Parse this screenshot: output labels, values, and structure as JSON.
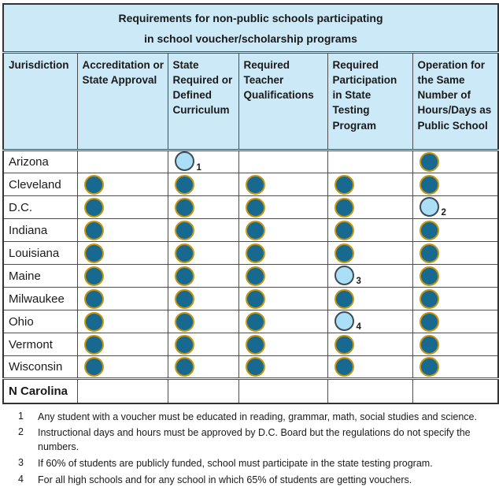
{
  "title": {
    "line1": "Requirements for non-public schools participating",
    "line2": "in school voucher/scholarship programs"
  },
  "table": {
    "columns": [
      "Jurisdiction",
      "Accreditation or State Approval",
      "State Required or Defined Curriculum",
      "Required Teacher Qualifications",
      "Required Participation in State Testing Program",
      "Operation for the Same Number of Hours/Days as Public School"
    ],
    "marker_legend": {
      "filled": "dark-filled-circle (requirement applies)",
      "open": "light-open-circle (qualified requirement, see footnote)"
    },
    "rows": [
      {
        "jurisdiction": "Arizona",
        "bold": false,
        "cells": [
          "",
          "open:1",
          "",
          "",
          "filled"
        ]
      },
      {
        "jurisdiction": "Cleveland",
        "bold": false,
        "cells": [
          "filled",
          "filled",
          "filled",
          "filled",
          "filled"
        ]
      },
      {
        "jurisdiction": "D.C.",
        "bold": false,
        "cells": [
          "filled",
          "filled",
          "filled",
          "filled",
          "open:2"
        ]
      },
      {
        "jurisdiction": "Indiana",
        "bold": false,
        "cells": [
          "filled",
          "filled",
          "filled",
          "filled",
          "filled"
        ]
      },
      {
        "jurisdiction": "Louisiana",
        "bold": false,
        "cells": [
          "filled",
          "filled",
          "filled",
          "filled",
          "filled"
        ]
      },
      {
        "jurisdiction": "Maine",
        "bold": false,
        "cells": [
          "filled",
          "filled",
          "filled",
          "open:3",
          "filled"
        ]
      },
      {
        "jurisdiction": "Milwaukee",
        "bold": false,
        "cells": [
          "filled",
          "filled",
          "filled",
          "filled",
          "filled"
        ]
      },
      {
        "jurisdiction": "Ohio",
        "bold": false,
        "cells": [
          "filled",
          "filled",
          "filled",
          "open:4",
          "filled"
        ]
      },
      {
        "jurisdiction": "Vermont",
        "bold": false,
        "cells": [
          "filled",
          "filled",
          "filled",
          "filled",
          "filled"
        ]
      },
      {
        "jurisdiction": "Wisconsin",
        "bold": false,
        "cells": [
          "filled",
          "filled",
          "filled",
          "filled",
          "filled"
        ]
      },
      {
        "jurisdiction": "N Carolina",
        "bold": true,
        "cells": [
          "",
          "",
          "",
          "",
          ""
        ]
      }
    ]
  },
  "footnotes": [
    {
      "num": "1",
      "text": "Any student with a voucher must be educated in reading, grammar, math, social studies and science."
    },
    {
      "num": "2",
      "text": "Instructional days and hours must be approved by D.C. Board but the regulations do not specify the numbers."
    },
    {
      "num": "3",
      "text": "If 60% of students are publicly funded, school must participate in the state testing program."
    },
    {
      "num": "4",
      "text": "For all high schools and for any school in which 65% of students are getting vouchers."
    }
  ],
  "colors": {
    "header_bg": "#cce9f8",
    "filled_dot_fill": "#17698f",
    "filled_dot_ring": "#c8950f",
    "open_dot_fill": "#abdff7",
    "open_dot_ring": "#3c4b54",
    "border": "#4d4d4d",
    "text": "#1a1a1a"
  }
}
